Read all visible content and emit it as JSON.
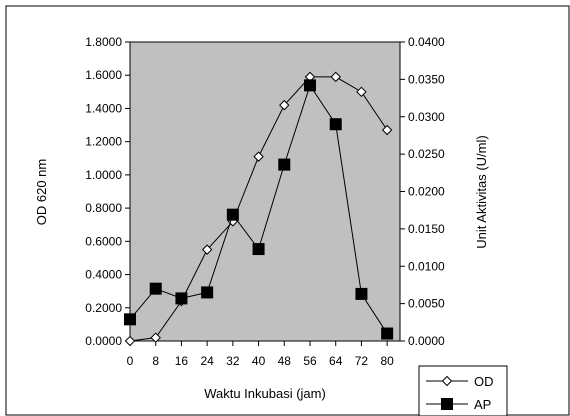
{
  "chart_data": {
    "type": "line",
    "xlabel": "Waktu Inkubasi (jam)",
    "ylabel_left": "OD 620 nm",
    "ylabel_right": "Unit Aktivitas (U/ml)",
    "x": [
      0,
      8,
      16,
      24,
      32,
      40,
      48,
      56,
      64,
      72,
      80
    ],
    "x_tick_labels": [
      "0",
      "8",
      "16",
      "24",
      "32",
      "40",
      "48",
      "56",
      "64",
      "72",
      "80"
    ],
    "ylim_left": [
      0,
      1.8
    ],
    "ylim_right": [
      0,
      0.04
    ],
    "y_tick_labels_left": [
      "0.0000",
      "0.2000",
      "0.4000",
      "0.6000",
      "0.8000",
      "1.0000",
      "1.2000",
      "1.4000",
      "1.6000",
      "1.8000"
    ],
    "y_tick_labels_right": [
      "0.0000",
      "0.0050",
      "0.0100",
      "0.0150",
      "0.0200",
      "0.0250",
      "0.0300",
      "0.0350",
      "0.0400"
    ],
    "grid": false,
    "plot_background": "#c0c0c0",
    "legend_position": "bottom-right",
    "series": [
      {
        "name": "OD",
        "axis": "left",
        "marker": "open-diamond",
        "values": [
          0.0,
          0.02,
          0.24,
          0.55,
          0.72,
          1.11,
          1.42,
          1.59,
          1.59,
          1.5,
          1.27
        ]
      },
      {
        "name": "AP",
        "axis": "right",
        "marker": "filled-square",
        "values": [
          0.0029,
          0.007,
          0.0057,
          0.0065,
          0.0169,
          0.0123,
          0.0236,
          0.0342,
          0.029,
          0.0063,
          0.001
        ]
      }
    ]
  }
}
